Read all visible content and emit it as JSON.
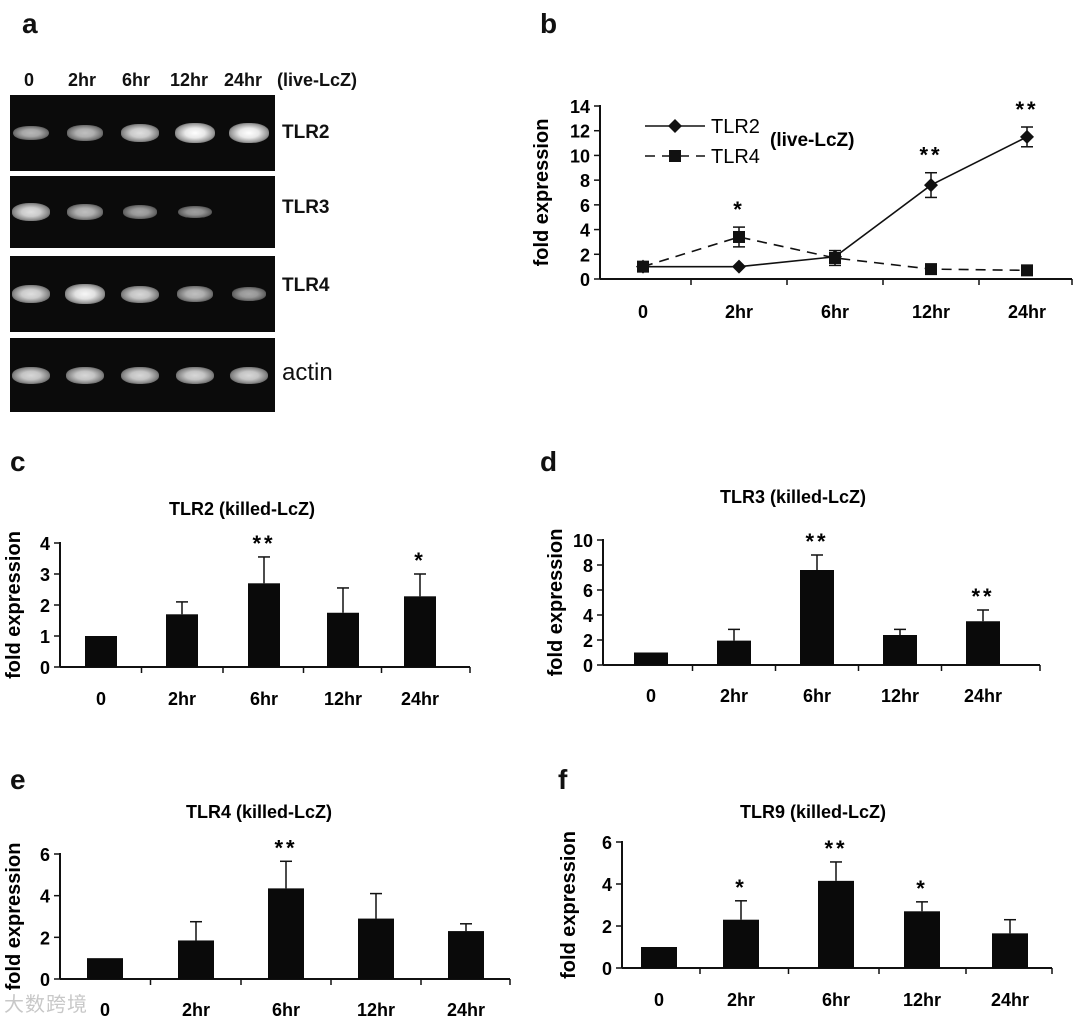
{
  "panel_letters": [
    "a",
    "b",
    "c",
    "d",
    "e",
    "f"
  ],
  "gel": {
    "lanes": [
      "0",
      "2hr",
      "6hr",
      "12hr",
      "24hr"
    ],
    "condition": "(live-LcZ)",
    "rows": [
      {
        "label": "TLR2",
        "intensity": [
          0.55,
          0.6,
          0.8,
          1.0,
          1.0
        ]
      },
      {
        "label": "TLR3",
        "intensity": [
          0.8,
          0.6,
          0.45,
          0.4,
          0.0
        ]
      },
      {
        "label": "TLR4",
        "intensity": [
          0.8,
          0.95,
          0.75,
          0.6,
          0.45
        ]
      },
      {
        "label": "actin",
        "intensity": [
          0.75,
          0.75,
          0.75,
          0.75,
          0.75
        ]
      }
    ]
  },
  "chart_data": [
    {
      "panel": "b",
      "type": "line",
      "title": "",
      "annotation": "(live-LcZ)",
      "ylabel": "fold expression",
      "xlabel": "",
      "categories": [
        "0",
        "2hr",
        "6hr",
        "12hr",
        "24hr"
      ],
      "ylim": [
        0,
        14
      ],
      "yticks": [
        0,
        2,
        4,
        6,
        8,
        10,
        12,
        14
      ],
      "series": [
        {
          "name": "TLR2",
          "marker": "diamond",
          "dash": false,
          "values": [
            1.0,
            1.0,
            1.8,
            7.6,
            11.5
          ],
          "errors": [
            0,
            0,
            0,
            1.0,
            0.8
          ],
          "stars": [
            "",
            "",
            "",
            "**",
            "**"
          ]
        },
        {
          "name": "TLR4",
          "marker": "square",
          "dash": true,
          "values": [
            1.0,
            3.4,
            1.7,
            0.8,
            0.7
          ],
          "errors": [
            0,
            0.8,
            0.6,
            0,
            0
          ],
          "stars": [
            "",
            "*",
            "",
            "",
            ""
          ]
        }
      ]
    },
    {
      "panel": "c",
      "type": "bar",
      "title": "TLR2  (killed-LcZ)",
      "ylabel": "fold expression",
      "categories": [
        "0",
        "2hr",
        "6hr",
        "12hr",
        "24hr"
      ],
      "ylim": [
        0,
        4
      ],
      "yticks": [
        0,
        1,
        2,
        3,
        4
      ],
      "values": [
        1.0,
        1.7,
        2.7,
        1.75,
        2.28
      ],
      "errors": [
        0,
        0.4,
        0.85,
        0.8,
        0.72
      ],
      "stars": [
        "",
        "",
        "**",
        "",
        "*"
      ]
    },
    {
      "panel": "d",
      "type": "bar",
      "title": "TLR3 (killed-LcZ)",
      "ylabel": "fold expression",
      "categories": [
        "0",
        "2hr",
        "6hr",
        "12hr",
        "24hr"
      ],
      "ylim": [
        0,
        10
      ],
      "yticks": [
        0,
        2,
        4,
        6,
        8,
        10
      ],
      "values": [
        1.0,
        1.95,
        7.6,
        2.4,
        3.5
      ],
      "errors": [
        0,
        0.9,
        1.2,
        0.45,
        0.9
      ],
      "stars": [
        "",
        "",
        "**",
        "",
        "**"
      ]
    },
    {
      "panel": "e",
      "type": "bar",
      "title": "TLR4 (killed-LcZ)",
      "ylabel": "fold expression",
      "categories": [
        "0",
        "2hr",
        "6hr",
        "12hr",
        "24hr"
      ],
      "ylim": [
        0,
        6
      ],
      "yticks": [
        0,
        2,
        4,
        6
      ],
      "values": [
        1.0,
        1.85,
        4.35,
        2.9,
        2.3
      ],
      "errors": [
        0,
        0.9,
        1.3,
        1.2,
        0.35
      ],
      "stars": [
        "",
        "",
        "**",
        "",
        ""
      ]
    },
    {
      "panel": "f",
      "type": "bar",
      "title": "TLR9 (killed-LcZ)",
      "ylabel": "fold expression",
      "categories": [
        "0",
        "2hr",
        "6hr",
        "12hr",
        "24hr"
      ],
      "ylim": [
        0,
        6
      ],
      "yticks": [
        0,
        2,
        4,
        6
      ],
      "values": [
        1.0,
        2.3,
        4.15,
        2.7,
        1.65
      ],
      "errors": [
        0,
        0.9,
        0.9,
        0.45,
        0.65
      ],
      "stars": [
        "",
        "*",
        "**",
        "*",
        ""
      ]
    }
  ],
  "watermark": "大数跨境"
}
